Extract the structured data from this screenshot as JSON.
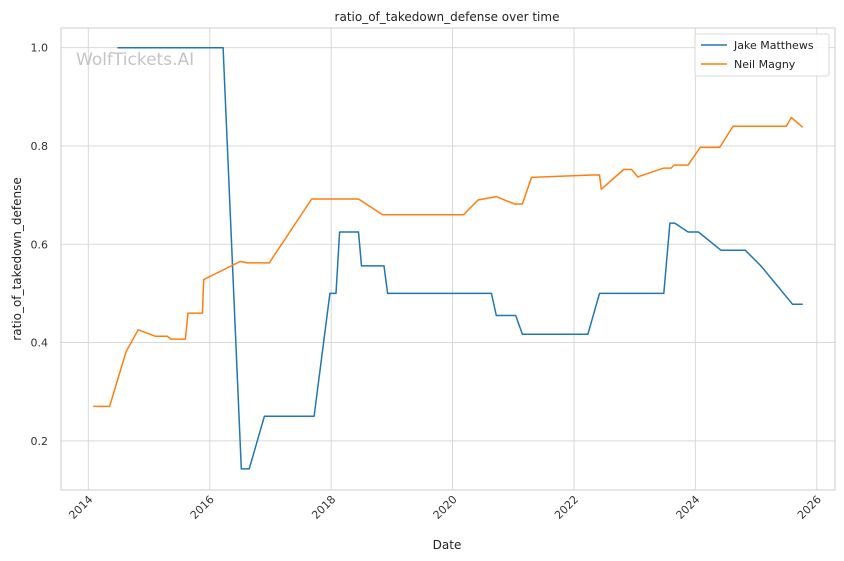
{
  "chart_data": {
    "type": "line",
    "title": "ratio_of_takedown_defense over time",
    "xlabel": "Date",
    "ylabel": "ratio_of_takedown_defense",
    "watermark": "WolfTickets.AI",
    "xlim": [
      2013.55,
      2026.3
    ],
    "ylim": [
      0.1,
      1.04
    ],
    "x_ticks": [
      2014,
      2016,
      2018,
      2020,
      2022,
      2024,
      2026
    ],
    "x_tick_labels": [
      "2014",
      "2016",
      "2018",
      "2020",
      "2022",
      "2024",
      "2026"
    ],
    "y_ticks": [
      0.2,
      0.4,
      0.6,
      0.8,
      1.0
    ],
    "y_tick_labels": [
      "0.2",
      "0.4",
      "0.6",
      "0.8",
      "1.0"
    ],
    "grid": true,
    "legend_position": "top-right",
    "series": [
      {
        "name": "Jake Matthews",
        "color": "#1f77b4",
        "x": [
          2014.48,
          2016.22,
          2016.52,
          2016.65,
          2016.9,
          2017.72,
          2017.98,
          2018.08,
          2018.14,
          2018.45,
          2018.5,
          2018.87,
          2018.93,
          2020.64,
          2020.72,
          2021.04,
          2021.15,
          2022.23,
          2022.42,
          2023.48,
          2023.58,
          2023.66,
          2023.88,
          2024.05,
          2024.42,
          2024.82,
          2025.08,
          2025.6,
          2025.77
        ],
        "y": [
          1.0,
          1.0,
          0.143,
          0.143,
          0.25,
          0.25,
          0.5,
          0.5,
          0.625,
          0.625,
          0.556,
          0.556,
          0.5,
          0.5,
          0.455,
          0.455,
          0.417,
          0.417,
          0.5,
          0.5,
          0.643,
          0.643,
          0.625,
          0.625,
          0.588,
          0.588,
          0.556,
          0.478,
          0.478
        ]
      },
      {
        "name": "Neil Magny",
        "color": "#ff7f0e",
        "x": [
          2014.08,
          2014.35,
          2014.62,
          2014.82,
          2015.1,
          2015.3,
          2015.36,
          2015.6,
          2015.64,
          2015.88,
          2015.9,
          2016.5,
          2016.62,
          2016.98,
          2017.68,
          2018.45,
          2018.85,
          2020.18,
          2020.42,
          2020.72,
          2021.02,
          2021.15,
          2021.3,
          2022.3,
          2022.42,
          2022.45,
          2022.82,
          2022.95,
          2023.05,
          2023.48,
          2023.6,
          2023.65,
          2023.88,
          2024.08,
          2024.4,
          2024.62,
          2025.5,
          2025.58,
          2025.77
        ],
        "y": [
          0.27,
          0.27,
          0.381,
          0.426,
          0.413,
          0.413,
          0.407,
          0.407,
          0.46,
          0.46,
          0.528,
          0.565,
          0.562,
          0.562,
          0.692,
          0.692,
          0.66,
          0.66,
          0.69,
          0.697,
          0.682,
          0.682,
          0.736,
          0.741,
          0.741,
          0.712,
          0.752,
          0.752,
          0.737,
          0.755,
          0.755,
          0.761,
          0.761,
          0.797,
          0.797,
          0.84,
          0.84,
          0.858,
          0.838
        ]
      }
    ]
  }
}
